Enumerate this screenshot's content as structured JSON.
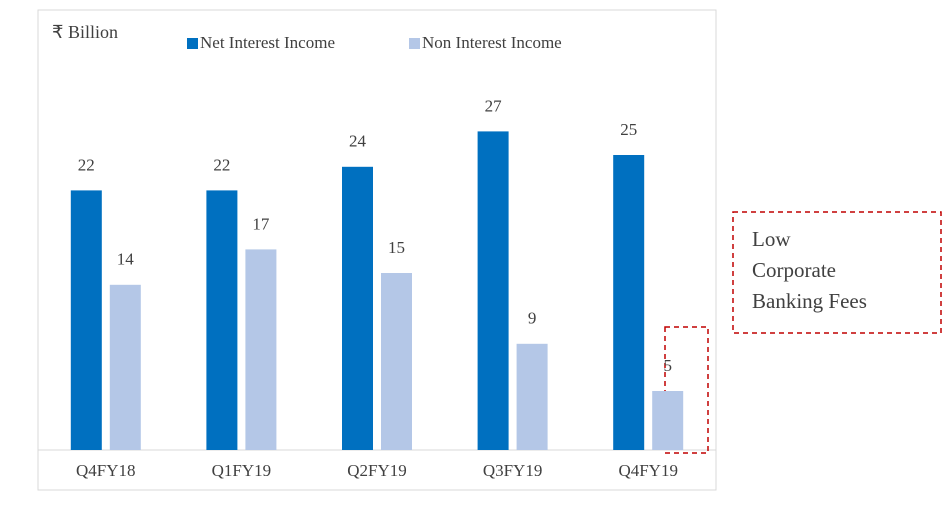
{
  "chart_data": {
    "type": "bar",
    "y_label": "₹ Billion",
    "categories": [
      "Q4FY18",
      "Q1FY19",
      "Q2FY19",
      "Q3FY19",
      "Q4FY19"
    ],
    "series": [
      {
        "name": "Net Interest Income",
        "color": "#0070c0",
        "values": [
          22,
          22,
          24,
          27,
          25
        ]
      },
      {
        "name": "Non Interest Income",
        "color": "#b4c7e7",
        "values": [
          14,
          17,
          15,
          9,
          5
        ]
      }
    ],
    "ylim": [
      0,
      30
    ],
    "annotation": [
      "Low",
      "Corporate",
      "Banking Fees"
    ]
  }
}
